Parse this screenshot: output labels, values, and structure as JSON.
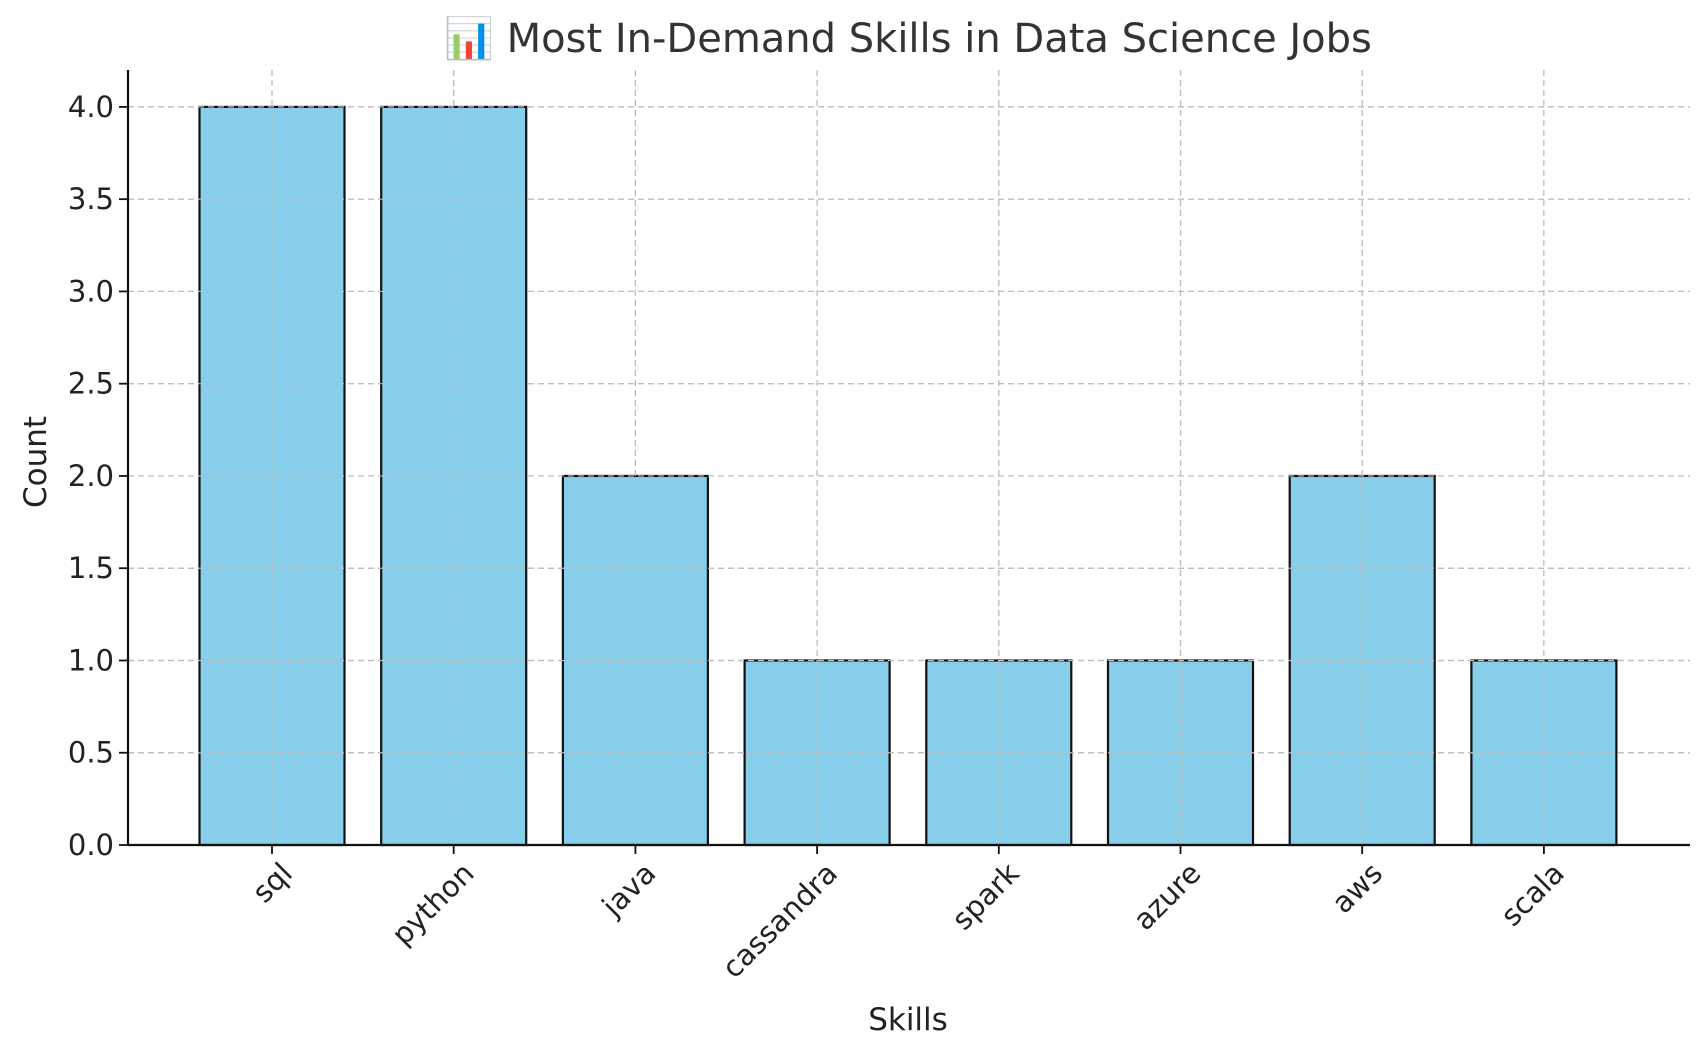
{
  "chart_data": {
    "type": "bar",
    "title": "📊 Most In-Demand Skills in Data Science Jobs",
    "xlabel": "Skills",
    "ylabel": "Count",
    "categories": [
      "sql",
      "python",
      "java",
      "cassandra",
      "spark",
      "azure",
      "aws",
      "scala"
    ],
    "values": [
      4,
      4,
      2,
      1,
      1,
      1,
      2,
      1
    ],
    "ylim": [
      0,
      4.2
    ],
    "yticks": [
      0.0,
      0.5,
      1.0,
      1.5,
      2.0,
      2.5,
      3.0,
      3.5,
      4.0
    ],
    "ytick_labels": [
      "0.0",
      "0.5",
      "1.0",
      "1.5",
      "2.0",
      "2.5",
      "3.0",
      "3.5",
      "4.0"
    ],
    "grid": true,
    "bar_color": "#87ceeb",
    "edge_color": "#111111"
  }
}
